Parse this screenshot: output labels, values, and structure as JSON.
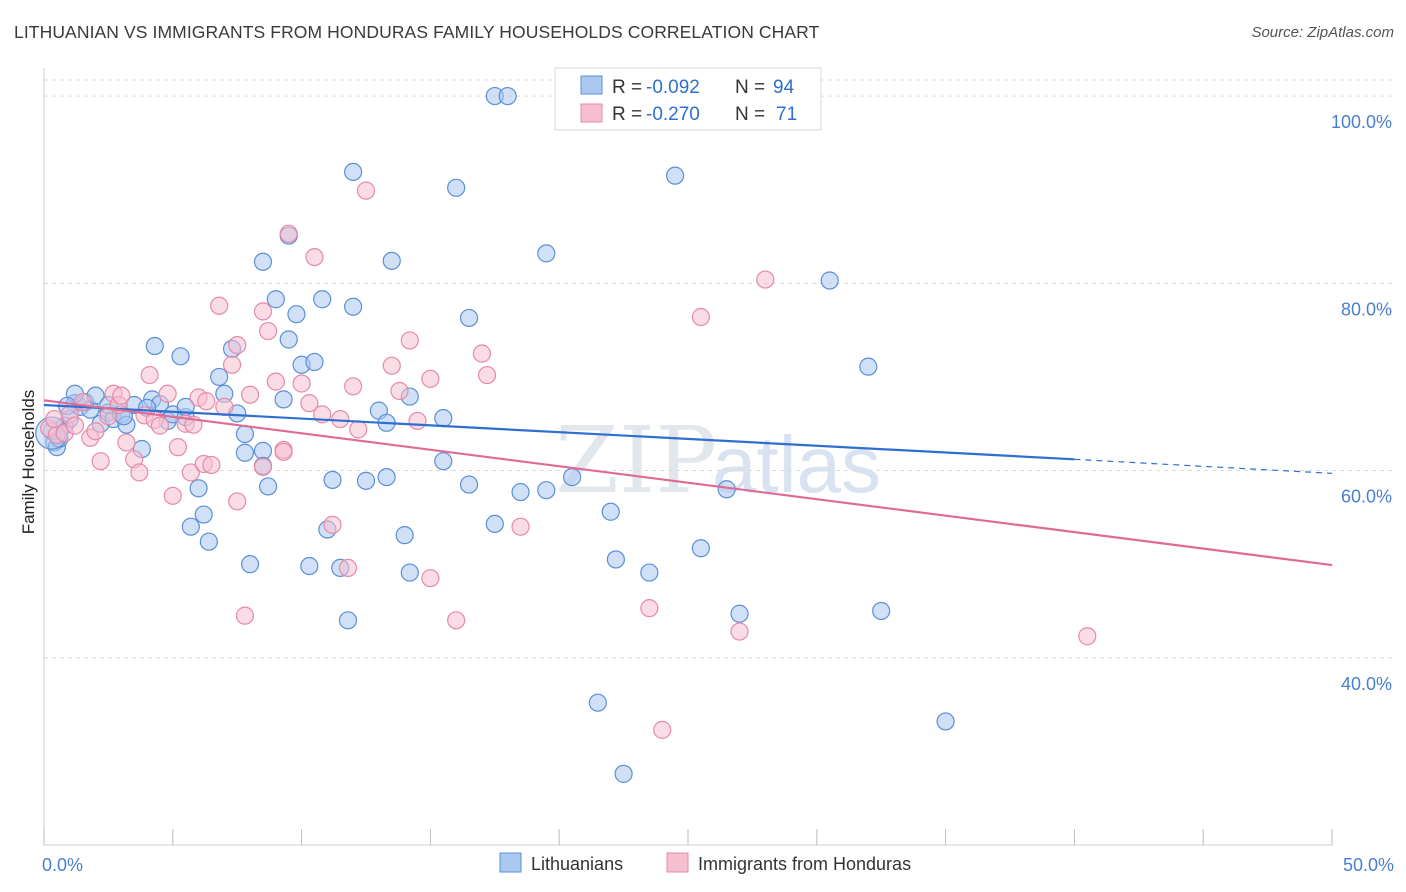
{
  "title": "LITHUANIAN VS IMMIGRANTS FROM HONDURAS FAMILY HOUSEHOLDS CORRELATION CHART",
  "source": "Source: ZipAtlas.com",
  "watermark": {
    "zip": "ZIP",
    "atlas": "atlas"
  },
  "colors": {
    "blue_fill": "#aac8f0",
    "blue_stroke": "#5b8fd6",
    "blue_line": "#2f6fcf",
    "pink_fill": "#f5bfd0",
    "pink_stroke": "#e68aa8",
    "pink_line": "#e06a92",
    "tick_text": "#4a7fd0",
    "grid": "#dcdcdc"
  },
  "stats_box": {
    "rows": [
      {
        "r_label": "R =",
        "r_value": "-0.092",
        "n_label": "N =",
        "n_value": "94"
      },
      {
        "r_label": "R =",
        "r_value": "-0.270",
        "n_label": "N =",
        "n_value": "71"
      }
    ]
  },
  "chart_data": {
    "type": "scatter",
    "title": "LITHUANIAN VS IMMIGRANTS FROM HONDURAS FAMILY HOUSEHOLDS CORRELATION CHART",
    "xlabel": "",
    "ylabel": "Family Households",
    "xlim": [
      0,
      50
    ],
    "ylim": [
      20,
      103
    ],
    "x_tick_labels": [
      "0.0%",
      "50.0%"
    ],
    "y_ticks": [
      40,
      60,
      80,
      100
    ],
    "y_tick_labels": [
      "40.0%",
      "60.0%",
      "80.0%",
      "100.0%"
    ],
    "grid": true,
    "legend_position": "bottom",
    "series": [
      {
        "name": "Lithuanians",
        "color": "#aac8f0",
        "trend": {
          "x": [
            0,
            40
          ],
          "y": [
            67.0,
            61.2
          ],
          "dashed_to_x": 50,
          "dashed_to_y": 59.7
        },
        "points": [
          [
            0.3,
            64.2
          ],
          [
            0.4,
            63.0
          ],
          [
            0.5,
            62.5
          ],
          [
            0.8,
            64.8
          ],
          [
            1.0,
            65.5
          ],
          [
            1.2,
            67.2
          ],
          [
            1.4,
            66.8
          ],
          [
            1.6,
            67.3
          ],
          [
            1.8,
            66.5
          ],
          [
            2.0,
            68.0
          ],
          [
            2.2,
            65.0
          ],
          [
            2.5,
            66.2
          ],
          [
            2.7,
            65.5
          ],
          [
            3.0,
            66.0
          ],
          [
            3.2,
            64.9
          ],
          [
            3.5,
            67.0
          ],
          [
            3.8,
            62.3
          ],
          [
            4.2,
            67.6
          ],
          [
            4.5,
            67.1
          ],
          [
            4.8,
            65.3
          ],
          [
            5.0,
            66.0
          ],
          [
            5.5,
            65.7
          ],
          [
            5.7,
            54.0
          ],
          [
            6.0,
            58.1
          ],
          [
            6.2,
            55.3
          ],
          [
            6.4,
            52.4
          ],
          [
            7.0,
            68.2
          ],
          [
            7.5,
            66.1
          ],
          [
            7.8,
            63.9
          ],
          [
            8.0,
            50.0
          ],
          [
            8.5,
            62.1
          ],
          [
            8.7,
            58.3
          ],
          [
            9.0,
            78.3
          ],
          [
            9.3,
            67.6
          ],
          [
            9.5,
            74.0
          ],
          [
            10.0,
            71.3
          ],
          [
            10.3,
            49.8
          ],
          [
            10.8,
            78.3
          ],
          [
            11.0,
            53.7
          ],
          [
            11.5,
            49.6
          ],
          [
            11.8,
            44.0
          ],
          [
            12.0,
            77.5
          ],
          [
            12.5,
            58.9
          ],
          [
            13.0,
            66.4
          ],
          [
            13.3,
            65.1
          ],
          [
            14.0,
            53.1
          ],
          [
            14.2,
            49.1
          ],
          [
            15.5,
            65.6
          ],
          [
            15.5,
            61.0
          ],
          [
            17.5,
            54.3
          ],
          [
            18.5,
            57.7
          ],
          [
            19.5,
            57.9
          ],
          [
            20.5,
            59.3
          ],
          [
            22.0,
            55.6
          ],
          [
            22.2,
            50.5
          ],
          [
            23.5,
            49.1
          ],
          [
            25.5,
            51.7
          ],
          [
            26.5,
            58.0
          ],
          [
            27.0,
            44.7
          ],
          [
            30.5,
            80.3
          ],
          [
            32.0,
            71.1
          ],
          [
            32.5,
            45.0
          ],
          [
            35.0,
            33.2
          ],
          [
            21.5,
            35.2
          ],
          [
            22.5,
            27.6
          ],
          [
            12.0,
            91.9
          ],
          [
            16.0,
            90.2
          ],
          [
            17.5,
            100.0
          ],
          [
            18.0,
            100.0
          ],
          [
            24.5,
            91.5
          ],
          [
            19.5,
            83.2
          ],
          [
            9.5,
            85.1
          ],
          [
            13.5,
            82.4
          ],
          [
            8.5,
            82.3
          ],
          [
            16.5,
            76.3
          ],
          [
            9.8,
            76.7
          ],
          [
            5.3,
            72.2
          ],
          [
            4.3,
            73.3
          ],
          [
            7.3,
            73.0
          ],
          [
            10.5,
            71.6
          ],
          [
            14.2,
            67.9
          ],
          [
            7.8,
            61.9
          ],
          [
            6.8,
            70.0
          ],
          [
            2.5,
            67.0
          ],
          [
            1.2,
            68.2
          ],
          [
            0.6,
            63.4
          ],
          [
            0.9,
            66.9
          ],
          [
            3.1,
            65.8
          ],
          [
            4.0,
            66.7
          ],
          [
            5.5,
            66.8
          ],
          [
            13.3,
            59.3
          ],
          [
            8.5,
            60.5
          ],
          [
            16.5,
            58.5
          ],
          [
            11.2,
            59.0
          ]
        ]
      },
      {
        "name": "Immigrants from Honduras",
        "color": "#f5bfd0",
        "trend": {
          "x": [
            0,
            50
          ],
          "y": [
            67.5,
            49.9
          ]
        },
        "points": [
          [
            0.2,
            64.5
          ],
          [
            0.5,
            63.8
          ],
          [
            0.8,
            64.0
          ],
          [
            1.0,
            66.0
          ],
          [
            1.5,
            67.3
          ],
          [
            1.8,
            63.5
          ],
          [
            2.0,
            64.2
          ],
          [
            2.2,
            61.0
          ],
          [
            2.5,
            65.8
          ],
          [
            2.7,
            68.2
          ],
          [
            2.9,
            67.0
          ],
          [
            3.2,
            63.0
          ],
          [
            3.5,
            61.2
          ],
          [
            3.7,
            59.8
          ],
          [
            3.9,
            65.9
          ],
          [
            4.1,
            70.2
          ],
          [
            4.3,
            65.4
          ],
          [
            4.5,
            64.8
          ],
          [
            4.8,
            68.2
          ],
          [
            5.0,
            57.3
          ],
          [
            5.2,
            62.5
          ],
          [
            5.5,
            65.0
          ],
          [
            5.7,
            59.8
          ],
          [
            6.0,
            67.8
          ],
          [
            6.2,
            60.7
          ],
          [
            6.5,
            60.6
          ],
          [
            6.8,
            77.6
          ],
          [
            7.0,
            66.8
          ],
          [
            7.3,
            71.3
          ],
          [
            7.5,
            56.7
          ],
          [
            7.8,
            44.5
          ],
          [
            8.0,
            68.1
          ],
          [
            8.5,
            77.0
          ],
          [
            8.7,
            74.9
          ],
          [
            9.0,
            69.5
          ],
          [
            9.3,
            62.2
          ],
          [
            9.5,
            85.3
          ],
          [
            10.0,
            69.3
          ],
          [
            10.3,
            67.2
          ],
          [
            10.5,
            82.8
          ],
          [
            10.8,
            66.0
          ],
          [
            11.2,
            54.2
          ],
          [
            11.5,
            65.5
          ],
          [
            11.8,
            49.6
          ],
          [
            12.2,
            64.4
          ],
          [
            12.5,
            89.9
          ],
          [
            13.5,
            71.2
          ],
          [
            13.8,
            68.5
          ],
          [
            14.2,
            73.9
          ],
          [
            14.5,
            65.3
          ],
          [
            15.0,
            69.8
          ],
          [
            16.0,
            44.0
          ],
          [
            17.0,
            72.5
          ],
          [
            17.2,
            70.2
          ],
          [
            18.5,
            54.0
          ],
          [
            23.5,
            45.3
          ],
          [
            24.0,
            32.3
          ],
          [
            27.0,
            42.8
          ],
          [
            28.0,
            80.4
          ],
          [
            25.5,
            76.4
          ],
          [
            40.5,
            42.3
          ],
          [
            15.0,
            48.5
          ],
          [
            8.5,
            60.4
          ],
          [
            7.5,
            73.4
          ],
          [
            9.3,
            62.0
          ],
          [
            6.3,
            67.4
          ],
          [
            5.8,
            64.9
          ],
          [
            3.0,
            68.0
          ],
          [
            1.2,
            64.8
          ],
          [
            0.4,
            65.5
          ],
          [
            12.0,
            69.0
          ]
        ]
      }
    ]
  },
  "legend": {
    "items": [
      {
        "label": "Lithuanians"
      },
      {
        "label": "Immigrants from Honduras"
      }
    ]
  }
}
